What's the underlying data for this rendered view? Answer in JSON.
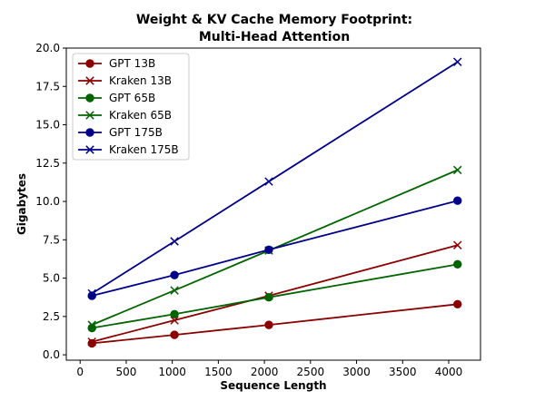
{
  "chart_data": {
    "type": "line",
    "title": [
      "Weight & KV Cache Memory Footprint:",
      "Multi-Head Attention"
    ],
    "xlabel": "Sequence Length",
    "ylabel": "Gigabytes",
    "xlim": [
      -150,
      4345
    ],
    "ylim": [
      -0.35,
      20
    ],
    "xticks": [
      0,
      500,
      1000,
      1500,
      2000,
      2500,
      3000,
      3500,
      4000
    ],
    "yticks": [
      0.0,
      2.5,
      5.0,
      7.5,
      10.0,
      12.5,
      15.0,
      17.5,
      20.0
    ],
    "ytick_format": "fixed1",
    "grid": false,
    "legend_position": "top-left",
    "x": [
      128,
      1024,
      2048,
      4096
    ],
    "series": [
      {
        "name": "GPT 13B",
        "marker": "circle",
        "color": "#8b0000",
        "values": [
          0.75,
          1.3,
          1.95,
          3.3
        ]
      },
      {
        "name": "Kraken 13B",
        "marker": "x",
        "color": "#8b0000",
        "values": [
          0.85,
          2.25,
          3.85,
          7.15
        ]
      },
      {
        "name": "GPT 65B",
        "marker": "circle",
        "color": "#006400",
        "values": [
          1.75,
          2.65,
          3.75,
          5.9
        ]
      },
      {
        "name": "Kraken 65B",
        "marker": "x",
        "color": "#006400",
        "values": [
          1.95,
          4.2,
          6.8,
          12.05
        ]
      },
      {
        "name": "GPT 175B",
        "marker": "circle",
        "color": "#00008b",
        "values": [
          3.85,
          5.2,
          6.85,
          10.05
        ]
      },
      {
        "name": "Kraken 175B",
        "marker": "x",
        "color": "#00008b",
        "values": [
          4.0,
          7.4,
          11.3,
          19.1
        ]
      }
    ]
  }
}
